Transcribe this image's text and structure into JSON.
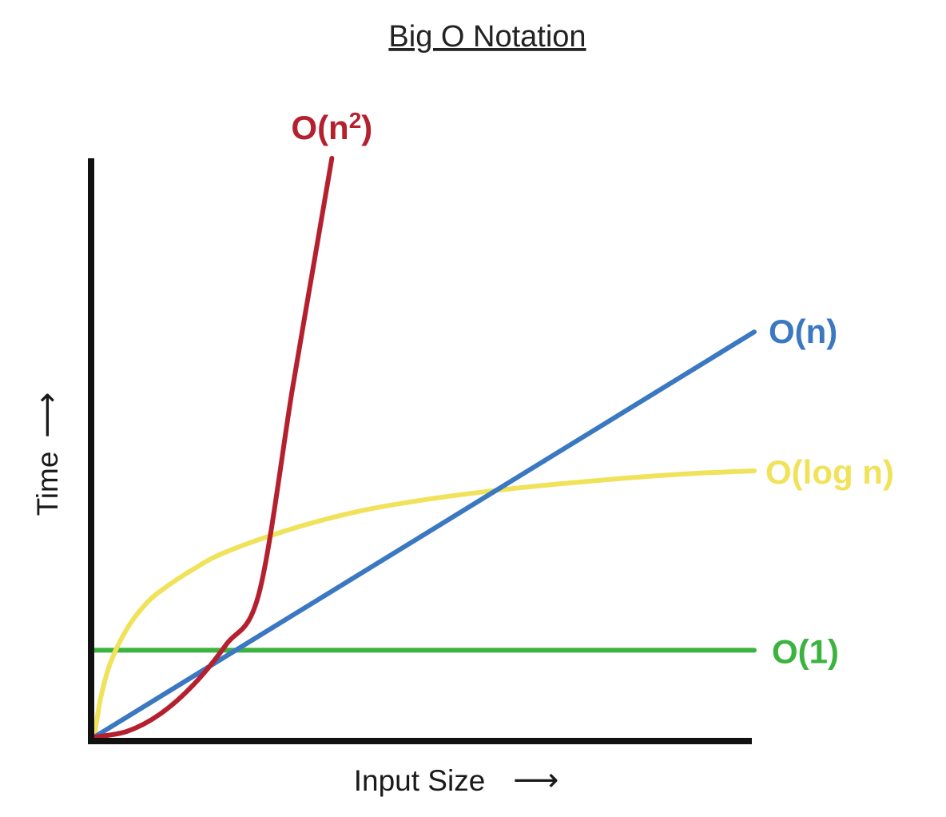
{
  "chart_data": {
    "type": "line",
    "title": "Big O Notation",
    "xlabel": "Input Size",
    "ylabel": "Time",
    "axis_arrow": "⟶",
    "grid": false,
    "legend": "inline-right",
    "xlim": [
      0,
      10
    ],
    "ylim": [
      0,
      10
    ],
    "series": [
      {
        "name": "O(1)",
        "label_base": "O(1)",
        "label_sup": "",
        "label_tail": "",
        "color": "#3db33f",
        "x": [
          0,
          10
        ],
        "y": [
          1.5,
          1.5
        ]
      },
      {
        "name": "O(log n)",
        "label_base": "O(log n)",
        "label_sup": "",
        "label_tail": "",
        "color": "#f0e25a",
        "x": [
          0,
          0.1,
          0.25,
          0.5,
          0.75,
          1,
          1.5,
          2,
          3,
          4,
          5,
          6,
          7,
          8,
          9,
          10
        ],
        "y": [
          0,
          0.69,
          1.3,
          1.88,
          2.26,
          2.52,
          2.9,
          3.2,
          3.6,
          3.9,
          4.1,
          4.25,
          4.37,
          4.47,
          4.55,
          4.6
        ]
      },
      {
        "name": "O(n)",
        "label_base": "O(n)",
        "label_sup": "",
        "label_tail": "",
        "color": "#3a78c2",
        "x": [
          0,
          10
        ],
        "y": [
          0,
          7
        ]
      },
      {
        "name": "O(n²)",
        "label_base": "O(n",
        "label_sup": "2",
        "label_tail": ")",
        "color": "#b5202e",
        "x": [
          0,
          0.5,
          1,
          1.5,
          2,
          2.5,
          3,
          3.3,
          3.6
        ],
        "y": [
          0,
          0.1,
          0.4,
          0.9,
          1.6,
          2.5,
          6.0,
          8.0,
          10.0
        ]
      }
    ]
  }
}
